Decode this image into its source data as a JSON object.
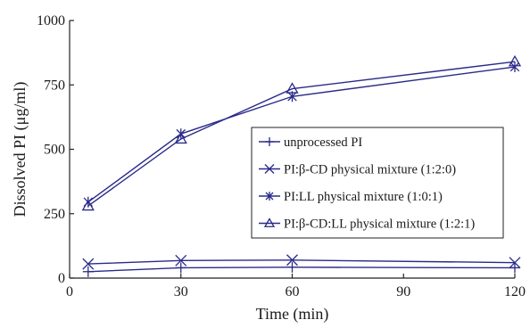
{
  "chart_data": {
    "type": "line",
    "title": "",
    "xlabel": "Time (min)",
    "ylabel": "Dissolved PI (μg/ml)",
    "xlim": [
      0,
      120
    ],
    "ylim": [
      0,
      1000
    ],
    "xticks": [
      0,
      30,
      60,
      90,
      120
    ],
    "yticks": [
      0,
      250,
      500,
      750,
      1000
    ],
    "x": [
      5,
      30,
      60,
      120
    ],
    "grid": false,
    "legend_position": "center-right",
    "line_color": "#2a2a8a",
    "series": [
      {
        "name": "unprocessed PI",
        "marker": "plus",
        "values": [
          25,
          40,
          42,
          40
        ]
      },
      {
        "name": "PI:β-CD physical mixture (1:2:0)",
        "marker": "x",
        "values": [
          55,
          68,
          70,
          60
        ]
      },
      {
        "name": "PI:LL physical mixture (1:0:1)",
        "marker": "star",
        "values": [
          295,
          560,
          705,
          820
        ]
      },
      {
        "name": "PI:β-CD:LL physical mixture (1:2:1)",
        "marker": "triangle",
        "values": [
          280,
          540,
          735,
          840
        ]
      }
    ]
  }
}
